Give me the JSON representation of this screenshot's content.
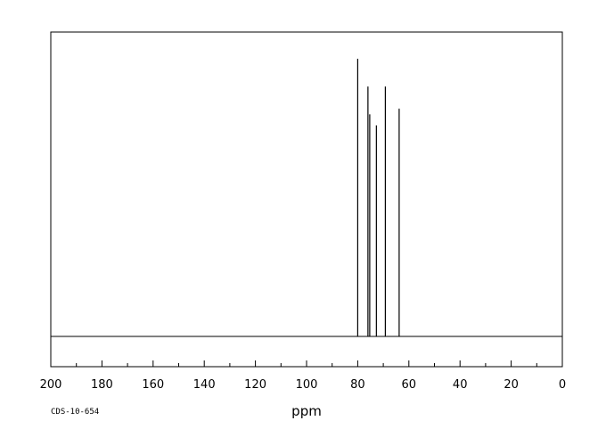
{
  "chart_data": {
    "type": "line",
    "title": "",
    "xlabel": "ppm",
    "ylabel": "",
    "xlim": [
      200,
      0
    ],
    "x_reversed": true,
    "x_ticks": [
      200,
      180,
      160,
      140,
      120,
      100,
      80,
      60,
      40,
      20,
      0
    ],
    "x_tick_labels": [
      "200",
      "180",
      "160",
      "140",
      "120",
      "100",
      "80",
      "60",
      "40",
      "20",
      "0"
    ],
    "minor_tick_step": 10,
    "grid": false,
    "legend": "none",
    "peaks": [
      {
        "ppm": 80.0,
        "height": 1.0
      },
      {
        "ppm": 76.0,
        "height": 0.9
      },
      {
        "ppm": 75.3,
        "height": 0.8
      },
      {
        "ppm": 72.7,
        "height": 0.76
      },
      {
        "ppm": 69.2,
        "height": 0.9
      },
      {
        "ppm": 63.8,
        "height": 0.82
      }
    ]
  },
  "footer": {
    "code": "CDS-10-654"
  }
}
